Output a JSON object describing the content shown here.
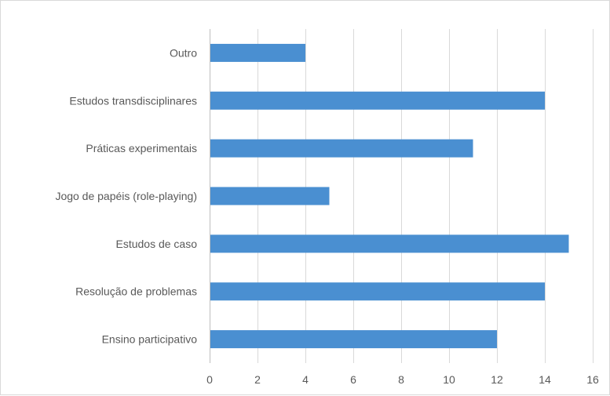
{
  "chart_data": {
    "type": "bar",
    "orientation": "horizontal",
    "categories": [
      "Outro",
      "Estudos transdisciplinares",
      "Práticas experimentais",
      "Jogo de papéis (role-playing)",
      "Estudos de caso",
      "Resolução de problemas",
      "Ensino participativo"
    ],
    "values": [
      4,
      14,
      11,
      5,
      15,
      14,
      12
    ],
    "xlim": [
      0,
      16
    ],
    "xticks": [
      "0",
      "2",
      "4",
      "6",
      "8",
      "10",
      "12",
      "14",
      "16"
    ],
    "grid": "vertical",
    "legend": "none",
    "bar_color": "#4a8fd1",
    "grid_color": "#d9d9d9",
    "axis_color": "#bfbfbf",
    "text_color": "#595959"
  }
}
